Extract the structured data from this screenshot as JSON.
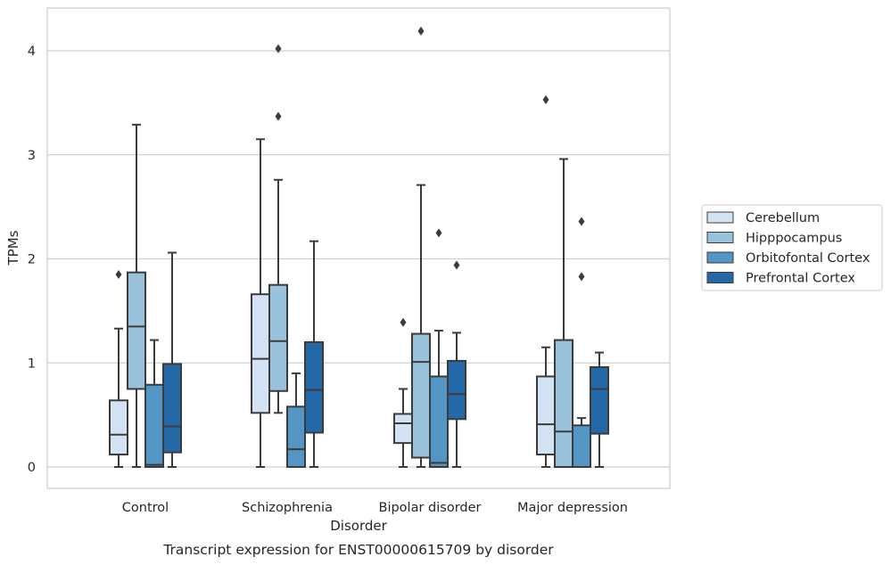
{
  "chart_data": {
    "type": "boxplot",
    "caption": "Transcript expression for ENST00000615709 by disorder",
    "xlabel": "Disorder",
    "ylabel": "TPMs",
    "ylim": [
      -0.2,
      4.4
    ],
    "yticks": [
      0,
      1,
      2,
      3,
      4
    ],
    "grid": "horizontal",
    "legend_position": "right",
    "categories": [
      "Control",
      "Schizophrenia",
      "Bipolar disorder",
      "Major depression"
    ],
    "series": [
      {
        "name": "Cerebellum",
        "color": "#d4e3f3",
        "boxes": [
          {
            "min": 0.0,
            "q1": 0.12,
            "median": 0.31,
            "q3": 0.64,
            "max": 1.33,
            "outliers": [
              1.85
            ]
          },
          {
            "min": 0.0,
            "q1": 0.52,
            "median": 1.04,
            "q3": 1.66,
            "max": 3.15,
            "outliers": []
          },
          {
            "min": 0.0,
            "q1": 0.23,
            "median": 0.42,
            "q3": 0.51,
            "max": 0.75,
            "outliers": [
              1.39
            ]
          },
          {
            "min": 0.0,
            "q1": 0.12,
            "median": 0.41,
            "q3": 0.87,
            "max": 1.15,
            "outliers": [
              3.53
            ]
          }
        ]
      },
      {
        "name": "Hipppocampus",
        "color": "#9ac2dc",
        "boxes": [
          {
            "min": 0.0,
            "q1": 0.75,
            "median": 1.35,
            "q3": 1.87,
            "max": 3.29,
            "outliers": []
          },
          {
            "min": 0.52,
            "q1": 0.73,
            "median": 1.21,
            "q3": 1.75,
            "max": 2.76,
            "outliers": [
              3.37,
              4.02
            ]
          },
          {
            "min": 0.0,
            "q1": 0.09,
            "median": 1.01,
            "q3": 1.28,
            "max": 2.71,
            "outliers": [
              4.19
            ]
          },
          {
            "min": 0.0,
            "q1": 0.0,
            "median": 0.34,
            "q3": 1.22,
            "max": 2.96,
            "outliers": []
          }
        ]
      },
      {
        "name": "Orbitofontal Cortex",
        "color": "#5396c5",
        "boxes": [
          {
            "min": 0.0,
            "q1": 0.0,
            "median": 0.02,
            "q3": 0.79,
            "max": 1.22,
            "outliers": []
          },
          {
            "min": 0.0,
            "q1": 0.0,
            "median": 0.17,
            "q3": 0.58,
            "max": 0.9,
            "outliers": []
          },
          {
            "min": 0.0,
            "q1": 0.0,
            "median": 0.04,
            "q3": 0.87,
            "max": 1.31,
            "outliers": [
              2.25
            ]
          },
          {
            "min": 0.0,
            "q1": 0.0,
            "median": 0.0,
            "q3": 0.4,
            "max": 0.47,
            "outliers": [
              1.83,
              2.36
            ]
          }
        ]
      },
      {
        "name": "Prefrontal Cortex",
        "color": "#2468a8",
        "boxes": [
          {
            "min": 0.0,
            "q1": 0.14,
            "median": 0.39,
            "q3": 0.99,
            "max": 2.06,
            "outliers": []
          },
          {
            "min": 0.0,
            "q1": 0.33,
            "median": 0.74,
            "q3": 1.2,
            "max": 2.17,
            "outliers": []
          },
          {
            "min": 0.0,
            "q1": 0.46,
            "median": 0.7,
            "q3": 1.02,
            "max": 1.29,
            "outliers": [
              1.94
            ]
          },
          {
            "min": 0.0,
            "q1": 0.32,
            "median": 0.75,
            "q3": 0.96,
            "max": 1.1,
            "outliers": []
          }
        ]
      }
    ]
  }
}
